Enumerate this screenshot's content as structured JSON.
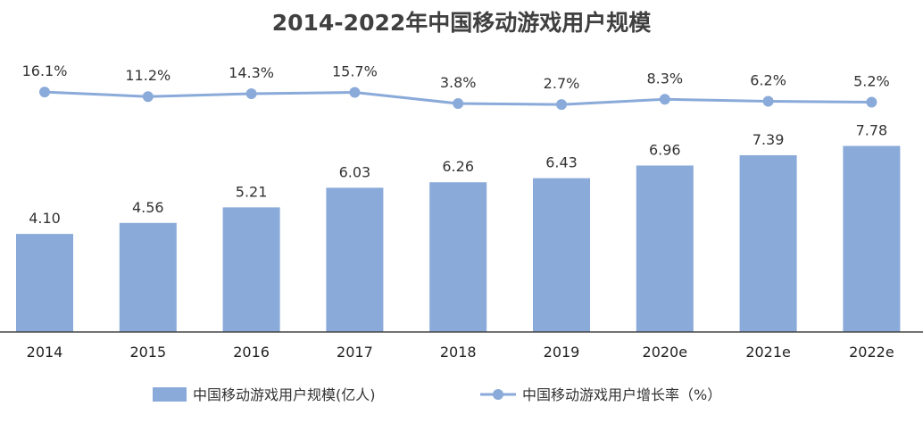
{
  "chart_data": {
    "type": "bar",
    "title": "2014-2022年中国移动游戏用户规模",
    "categories": [
      "2014",
      "2015",
      "2016",
      "2017",
      "2018",
      "2019",
      "2020e",
      "2021e",
      "2022e"
    ],
    "series": [
      {
        "name": "中国移动游戏用户规模(亿人)",
        "type": "bar",
        "values": [
          4.1,
          4.56,
          5.21,
          6.03,
          6.26,
          6.43,
          6.96,
          7.39,
          7.78
        ],
        "labels": [
          "4.10",
          "4.56",
          "5.21",
          "6.03",
          "6.26",
          "6.43",
          "6.96",
          "7.39",
          "7.78"
        ]
      },
      {
        "name": "中国移动游戏用户增长率（%）",
        "type": "line",
        "values": [
          16.1,
          11.2,
          14.3,
          15.7,
          3.8,
          2.7,
          8.3,
          6.2,
          5.2
        ],
        "labels": [
          "16.1%",
          "11.2%",
          "14.3%",
          "15.7%",
          "3.8%",
          "2.7%",
          "8.3%",
          "6.2%",
          "5.2%"
        ]
      }
    ],
    "legend_position": "bottom",
    "grid": false,
    "colors": {
      "bar": "#8aaad9",
      "line": "#8aaad9",
      "axis": "#444444"
    }
  }
}
